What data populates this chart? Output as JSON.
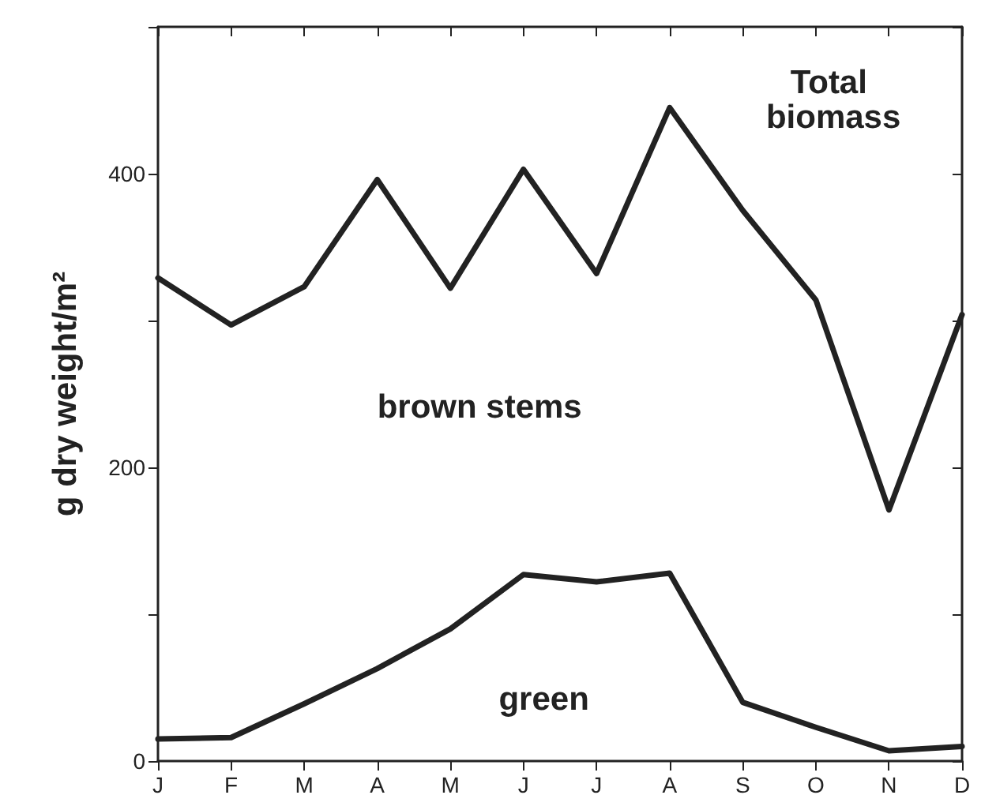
{
  "chart_data": {
    "type": "line",
    "ylabel": "g dry weight/m²",
    "categories": [
      "J",
      "F",
      "M",
      "A",
      "M",
      "J",
      "J",
      "A",
      "S",
      "O",
      "N",
      "D"
    ],
    "ylim": [
      0,
      500
    ],
    "yticks": [
      0,
      {
        "value": 100,
        "label": null
      },
      200,
      {
        "value": 300,
        "label": null
      },
      400,
      {
        "value": 500,
        "label": null
      }
    ],
    "series": [
      {
        "color": "#222222",
        "values": [
          329,
          297,
          323,
          396,
          322,
          403,
          332,
          445,
          375,
          314,
          171,
          304
        ]
      },
      {
        "color": "#222222",
        "values": [
          15,
          16,
          39,
          63,
          90,
          127,
          122,
          128,
          40,
          23,
          7,
          10
        ]
      }
    ],
    "annotations": [
      "Total biomass",
      "brown stems",
      "green"
    ],
    "grid": false,
    "marker": "none",
    "line_style": "solid"
  }
}
